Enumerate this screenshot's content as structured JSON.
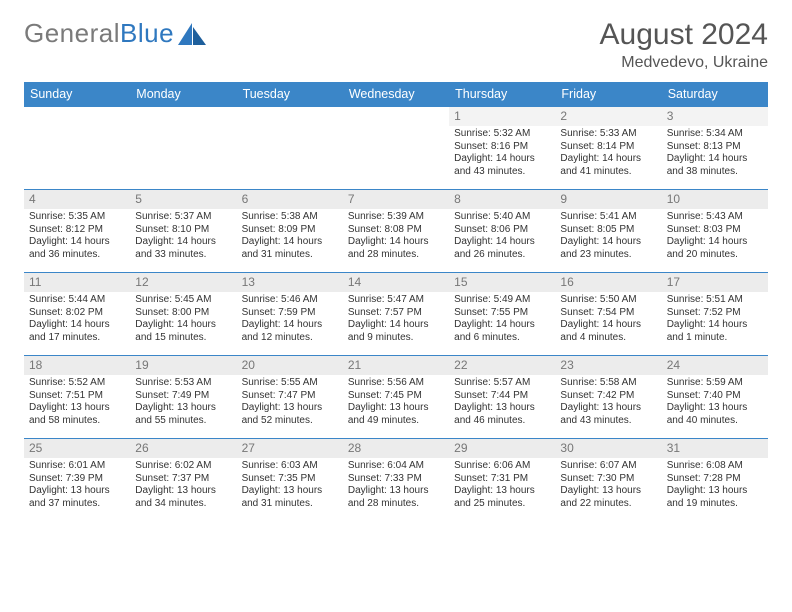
{
  "logo": {
    "part1": "General",
    "part2": "Blue"
  },
  "title": "August 2024",
  "subtitle": "Medvedevo, Ukraine",
  "colors": {
    "header_bg": "#3b86c8",
    "header_text": "#ffffff",
    "logo_grey": "#7a7a7a",
    "logo_blue": "#2f78bf",
    "daynum_bg": "#ececec",
    "text": "#333333",
    "rule": "#3b86c8"
  },
  "weekdays": [
    "Sunday",
    "Monday",
    "Tuesday",
    "Wednesday",
    "Thursday",
    "Friday",
    "Saturday"
  ],
  "weeks": [
    [
      null,
      null,
      null,
      null,
      {
        "n": "1",
        "sr": "Sunrise: 5:32 AM",
        "ss": "Sunset: 8:16 PM",
        "dl1": "Daylight: 14 hours",
        "dl2": "and 43 minutes."
      },
      {
        "n": "2",
        "sr": "Sunrise: 5:33 AM",
        "ss": "Sunset: 8:14 PM",
        "dl1": "Daylight: 14 hours",
        "dl2": "and 41 minutes."
      },
      {
        "n": "3",
        "sr": "Sunrise: 5:34 AM",
        "ss": "Sunset: 8:13 PM",
        "dl1": "Daylight: 14 hours",
        "dl2": "and 38 minutes."
      }
    ],
    [
      {
        "n": "4",
        "sr": "Sunrise: 5:35 AM",
        "ss": "Sunset: 8:12 PM",
        "dl1": "Daylight: 14 hours",
        "dl2": "and 36 minutes."
      },
      {
        "n": "5",
        "sr": "Sunrise: 5:37 AM",
        "ss": "Sunset: 8:10 PM",
        "dl1": "Daylight: 14 hours",
        "dl2": "and 33 minutes."
      },
      {
        "n": "6",
        "sr": "Sunrise: 5:38 AM",
        "ss": "Sunset: 8:09 PM",
        "dl1": "Daylight: 14 hours",
        "dl2": "and 31 minutes."
      },
      {
        "n": "7",
        "sr": "Sunrise: 5:39 AM",
        "ss": "Sunset: 8:08 PM",
        "dl1": "Daylight: 14 hours",
        "dl2": "and 28 minutes."
      },
      {
        "n": "8",
        "sr": "Sunrise: 5:40 AM",
        "ss": "Sunset: 8:06 PM",
        "dl1": "Daylight: 14 hours",
        "dl2": "and 26 minutes."
      },
      {
        "n": "9",
        "sr": "Sunrise: 5:41 AM",
        "ss": "Sunset: 8:05 PM",
        "dl1": "Daylight: 14 hours",
        "dl2": "and 23 minutes."
      },
      {
        "n": "10",
        "sr": "Sunrise: 5:43 AM",
        "ss": "Sunset: 8:03 PM",
        "dl1": "Daylight: 14 hours",
        "dl2": "and 20 minutes."
      }
    ],
    [
      {
        "n": "11",
        "sr": "Sunrise: 5:44 AM",
        "ss": "Sunset: 8:02 PM",
        "dl1": "Daylight: 14 hours",
        "dl2": "and 17 minutes."
      },
      {
        "n": "12",
        "sr": "Sunrise: 5:45 AM",
        "ss": "Sunset: 8:00 PM",
        "dl1": "Daylight: 14 hours",
        "dl2": "and 15 minutes."
      },
      {
        "n": "13",
        "sr": "Sunrise: 5:46 AM",
        "ss": "Sunset: 7:59 PM",
        "dl1": "Daylight: 14 hours",
        "dl2": "and 12 minutes."
      },
      {
        "n": "14",
        "sr": "Sunrise: 5:47 AM",
        "ss": "Sunset: 7:57 PM",
        "dl1": "Daylight: 14 hours",
        "dl2": "and 9 minutes."
      },
      {
        "n": "15",
        "sr": "Sunrise: 5:49 AM",
        "ss": "Sunset: 7:55 PM",
        "dl1": "Daylight: 14 hours",
        "dl2": "and 6 minutes."
      },
      {
        "n": "16",
        "sr": "Sunrise: 5:50 AM",
        "ss": "Sunset: 7:54 PM",
        "dl1": "Daylight: 14 hours",
        "dl2": "and 4 minutes."
      },
      {
        "n": "17",
        "sr": "Sunrise: 5:51 AM",
        "ss": "Sunset: 7:52 PM",
        "dl1": "Daylight: 14 hours",
        "dl2": "and 1 minute."
      }
    ],
    [
      {
        "n": "18",
        "sr": "Sunrise: 5:52 AM",
        "ss": "Sunset: 7:51 PM",
        "dl1": "Daylight: 13 hours",
        "dl2": "and 58 minutes."
      },
      {
        "n": "19",
        "sr": "Sunrise: 5:53 AM",
        "ss": "Sunset: 7:49 PM",
        "dl1": "Daylight: 13 hours",
        "dl2": "and 55 minutes."
      },
      {
        "n": "20",
        "sr": "Sunrise: 5:55 AM",
        "ss": "Sunset: 7:47 PM",
        "dl1": "Daylight: 13 hours",
        "dl2": "and 52 minutes."
      },
      {
        "n": "21",
        "sr": "Sunrise: 5:56 AM",
        "ss": "Sunset: 7:45 PM",
        "dl1": "Daylight: 13 hours",
        "dl2": "and 49 minutes."
      },
      {
        "n": "22",
        "sr": "Sunrise: 5:57 AM",
        "ss": "Sunset: 7:44 PM",
        "dl1": "Daylight: 13 hours",
        "dl2": "and 46 minutes."
      },
      {
        "n": "23",
        "sr": "Sunrise: 5:58 AM",
        "ss": "Sunset: 7:42 PM",
        "dl1": "Daylight: 13 hours",
        "dl2": "and 43 minutes."
      },
      {
        "n": "24",
        "sr": "Sunrise: 5:59 AM",
        "ss": "Sunset: 7:40 PM",
        "dl1": "Daylight: 13 hours",
        "dl2": "and 40 minutes."
      }
    ],
    [
      {
        "n": "25",
        "sr": "Sunrise: 6:01 AM",
        "ss": "Sunset: 7:39 PM",
        "dl1": "Daylight: 13 hours",
        "dl2": "and 37 minutes."
      },
      {
        "n": "26",
        "sr": "Sunrise: 6:02 AM",
        "ss": "Sunset: 7:37 PM",
        "dl1": "Daylight: 13 hours",
        "dl2": "and 34 minutes."
      },
      {
        "n": "27",
        "sr": "Sunrise: 6:03 AM",
        "ss": "Sunset: 7:35 PM",
        "dl1": "Daylight: 13 hours",
        "dl2": "and 31 minutes."
      },
      {
        "n": "28",
        "sr": "Sunrise: 6:04 AM",
        "ss": "Sunset: 7:33 PM",
        "dl1": "Daylight: 13 hours",
        "dl2": "and 28 minutes."
      },
      {
        "n": "29",
        "sr": "Sunrise: 6:06 AM",
        "ss": "Sunset: 7:31 PM",
        "dl1": "Daylight: 13 hours",
        "dl2": "and 25 minutes."
      },
      {
        "n": "30",
        "sr": "Sunrise: 6:07 AM",
        "ss": "Sunset: 7:30 PM",
        "dl1": "Daylight: 13 hours",
        "dl2": "and 22 minutes."
      },
      {
        "n": "31",
        "sr": "Sunrise: 6:08 AM",
        "ss": "Sunset: 7:28 PM",
        "dl1": "Daylight: 13 hours",
        "dl2": "and 19 minutes."
      }
    ]
  ]
}
